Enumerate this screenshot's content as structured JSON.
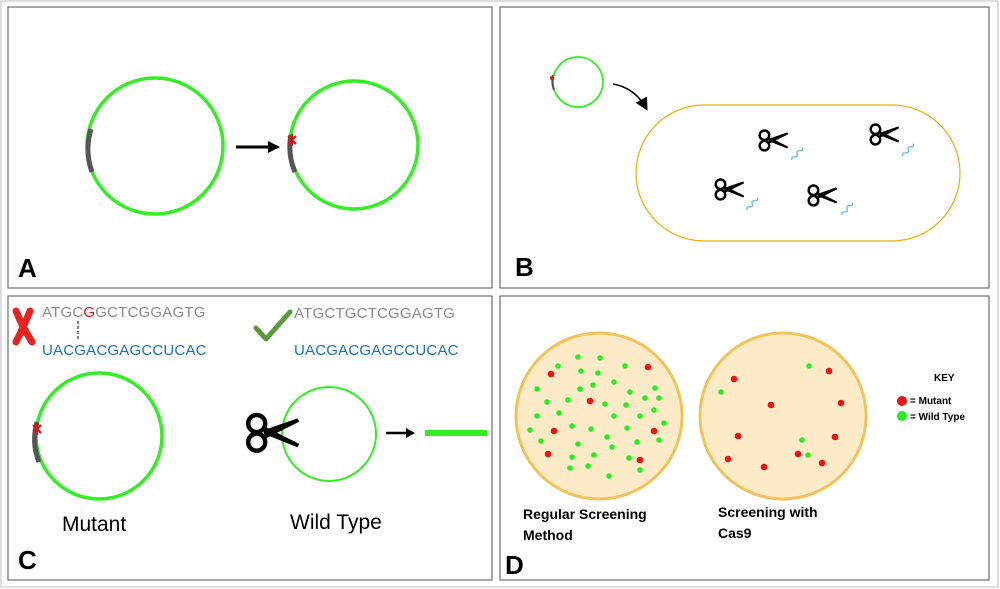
{
  "panels": {
    "A": {
      "letter": "A"
    },
    "B": {
      "letter": "B"
    },
    "C": {
      "letter": "C",
      "mutant_seq_top_prefix": "ATGC",
      "mutant_seq_top_mut": "G",
      "mutant_seq_top_suffix": "GCTCGGAGTG",
      "mutant_seq_bottom": "UACGACGAGCCUCAC",
      "wt_seq_top": "ATGCTGCTCGGAGTG",
      "wt_seq_bottom": "UACGACGAGCCUCAC",
      "mutant_caption": "Mutant",
      "wt_caption": "Wild Type"
    },
    "D": {
      "letter": "D",
      "plate1_label_line1": "Regular Screening",
      "plate1_label_line2": "Method",
      "plate2_label_line1": "Screening with",
      "plate2_label_line2": "Cas9",
      "key_title": "KEY",
      "key_mutant": "= Mutant",
      "key_wild_type": "= Wild Type"
    }
  },
  "colors": {
    "plasmid_green": "#33ee22",
    "insert_gray": "#555555",
    "mutation_red": "#dd1111",
    "rna_blue": "#1a73b8",
    "dna_gray": "#8a8a8a",
    "cell_outline": "#e8b000",
    "plate_fill": "#fdebc8",
    "plate_rim": "#f0c45a",
    "check_green": "#5a9a3a",
    "mutant_dot": "#ee1111",
    "wt_dot": "#22ee22"
  },
  "icons": [
    "scissors-icon",
    "arrow-right-icon",
    "cross-icon",
    "checkmark-icon"
  ]
}
